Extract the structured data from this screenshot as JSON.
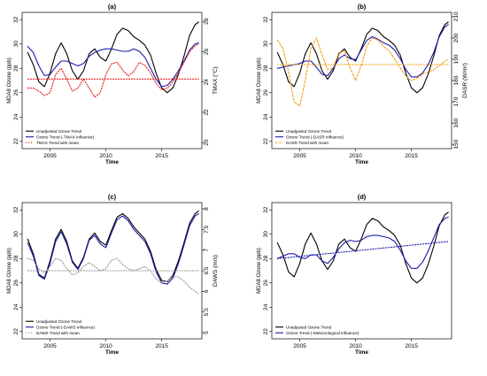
{
  "chart_data": [
    {
      "panel": "(a)",
      "type": "line",
      "x_label": "Time",
      "y_label": "MDA8 Ozone (ppb)",
      "y_ticks": [
        22,
        24,
        26,
        28,
        30,
        32
      ],
      "y_range": [
        21.4,
        32.6
      ],
      "right_label": "TMAX (°C)",
      "right_ticks": [
        20,
        22,
        24,
        26,
        28
      ],
      "right_range": [
        19.6,
        28.6
      ],
      "x_ticks": [
        2005,
        2010,
        2015
      ],
      "x_range": [
        2002.5,
        2018.6
      ],
      "legend_position": "bottom-left",
      "legend": [
        "Unadjusted Ozone Trend",
        "Ozone Trend (-TMAX Influence)",
        "TMAX Trend with mean"
      ],
      "series": [
        {
          "name": "Unadjusted Ozone Trend",
          "axis": "left",
          "color": "#000000",
          "style": "solid",
          "x": [
            2003.0,
            2003.5,
            2004.0,
            2004.5,
            2005.0,
            2005.5,
            2006.0,
            2006.5,
            2007.0,
            2007.5,
            2008.0,
            2008.5,
            2009.0,
            2009.5,
            2010.0,
            2010.5,
            2011.0,
            2011.5,
            2012.0,
            2012.5,
            2013.0,
            2013.5,
            2014.0,
            2014.5,
            2015.0,
            2015.5,
            2016.0,
            2016.5,
            2017.0,
            2017.5,
            2018.0,
            2018.3
          ],
          "y": [
            29.3,
            28.3,
            26.9,
            26.5,
            27.6,
            29.2,
            30.1,
            29.2,
            27.8,
            27.1,
            27.8,
            29.2,
            29.6,
            28.9,
            28.6,
            29.6,
            30.8,
            31.3,
            31.1,
            30.6,
            30.3,
            29.9,
            29.1,
            27.6,
            26.4,
            26.0,
            26.4,
            27.5,
            29.0,
            30.7,
            31.6,
            31.8
          ]
        },
        {
          "name": "Ozone Trend (-TMAX Influence)",
          "axis": "left",
          "color": "#1a1aaa",
          "style": "solid",
          "x": [
            2003.0,
            2003.5,
            2004.0,
            2004.5,
            2005.0,
            2005.5,
            2006.0,
            2006.5,
            2007.0,
            2007.5,
            2008.0,
            2008.5,
            2009.0,
            2009.5,
            2010.0,
            2010.5,
            2011.0,
            2011.5,
            2012.0,
            2012.5,
            2013.0,
            2013.5,
            2014.0,
            2014.5,
            2015.0,
            2015.5,
            2016.0,
            2016.5,
            2017.0,
            2017.5,
            2018.0,
            2018.3
          ],
          "y": [
            29.8,
            29.3,
            28.2,
            27.4,
            27.5,
            28.1,
            28.6,
            28.6,
            28.4,
            28.2,
            28.4,
            29.0,
            29.3,
            29.5,
            29.6,
            29.6,
            29.5,
            29.4,
            29.4,
            29.6,
            29.4,
            28.9,
            28.0,
            27.1,
            26.5,
            26.6,
            27.1,
            27.8,
            28.6,
            29.5,
            30.0,
            30.1
          ]
        },
        {
          "name": "TMAX Trend with mean",
          "axis": "right",
          "color": "#e8191a",
          "style": "dotted",
          "x": [
            2003.0,
            2003.5,
            2004.0,
            2004.5,
            2005.0,
            2005.5,
            2006.0,
            2006.5,
            2007.0,
            2007.5,
            2008.0,
            2008.5,
            2009.0,
            2009.5,
            2010.0,
            2010.5,
            2011.0,
            2011.5,
            2012.0,
            2012.5,
            2013.0,
            2013.5,
            2014.0,
            2014.5,
            2015.0,
            2015.5,
            2016.0,
            2016.5,
            2017.0,
            2017.5,
            2018.0,
            2018.3
          ],
          "y": [
            23.6,
            23.6,
            23.4,
            23.1,
            23.3,
            24.5,
            24.9,
            24.2,
            23.4,
            23.6,
            24.2,
            23.6,
            23.0,
            23.3,
            24.5,
            25.2,
            25.3,
            24.8,
            24.4,
            24.7,
            25.3,
            25.1,
            24.6,
            23.9,
            23.5,
            23.6,
            24.0,
            24.6,
            25.3,
            26.0,
            26.4,
            26.5
          ]
        },
        {
          "name": "TMAX mean",
          "axis": "right",
          "color": "#e8191a",
          "style": "dotted",
          "x": [
            2003.0,
            2018.3
          ],
          "y": [
            24.2,
            24.2
          ]
        }
      ]
    },
    {
      "panel": "(b)",
      "type": "line",
      "x_label": "Time",
      "y_label": "MDA8 Ozone (ppb)",
      "y_ticks": [
        22,
        24,
        26,
        28,
        30,
        32
      ],
      "y_range": [
        21.4,
        32.6
      ],
      "right_label": "DASR (W/m²)",
      "right_ticks": [
        150,
        160,
        170,
        180,
        190,
        200,
        210
      ],
      "right_range": [
        148,
        212
      ],
      "x_ticks": [
        2005,
        2010,
        2015
      ],
      "x_range": [
        2002.5,
        2018.6
      ],
      "legend_position": "bottom-left",
      "legend": [
        "Unadjusted Ozone Trend",
        "Ozone Trend (-DASR Influence)",
        "DASR Trend with mean"
      ],
      "series": [
        {
          "name": "Unadjusted Ozone Trend",
          "axis": "left",
          "color": "#000000",
          "style": "solid",
          "x": [
            2003.0,
            2003.5,
            2004.0,
            2004.5,
            2005.0,
            2005.5,
            2006.0,
            2006.5,
            2007.0,
            2007.5,
            2008.0,
            2008.5,
            2009.0,
            2009.5,
            2010.0,
            2010.5,
            2011.0,
            2011.5,
            2012.0,
            2012.5,
            2013.0,
            2013.5,
            2014.0,
            2014.5,
            2015.0,
            2015.5,
            2016.0,
            2016.5,
            2017.0,
            2017.5,
            2018.0,
            2018.3
          ],
          "y": [
            29.3,
            28.3,
            26.9,
            26.5,
            27.6,
            29.2,
            30.1,
            29.2,
            27.8,
            27.1,
            27.8,
            29.2,
            29.6,
            28.9,
            28.6,
            29.6,
            30.8,
            31.3,
            31.1,
            30.6,
            30.3,
            29.9,
            29.1,
            27.6,
            26.4,
            26.0,
            26.4,
            27.5,
            29.0,
            30.7,
            31.6,
            31.8
          ]
        },
        {
          "name": "Ozone Trend (-DASR Influence)",
          "axis": "left",
          "color": "#1a1aaa",
          "style": "solid",
          "x": [
            2003.0,
            2003.5,
            2004.0,
            2004.5,
            2005.0,
            2005.5,
            2006.0,
            2006.5,
            2007.0,
            2007.5,
            2008.0,
            2008.5,
            2009.0,
            2009.5,
            2010.0,
            2010.5,
            2011.0,
            2011.5,
            2012.0,
            2012.5,
            2013.0,
            2013.5,
            2014.0,
            2014.5,
            2015.0,
            2015.5,
            2016.0,
            2016.5,
            2017.0,
            2017.5,
            2018.0,
            2018.3
          ],
          "y": [
            28.0,
            28.1,
            28.2,
            28.3,
            28.4,
            28.6,
            28.6,
            28.1,
            27.5,
            27.4,
            28.0,
            28.8,
            29.1,
            28.8,
            28.7,
            29.5,
            30.3,
            30.6,
            30.4,
            30.1,
            29.9,
            29.5,
            28.8,
            27.9,
            27.3,
            27.3,
            27.6,
            28.3,
            29.3,
            30.6,
            31.4,
            31.6
          ]
        },
        {
          "name": "DASR Trend with mean",
          "axis": "right",
          "color": "#f5a01a",
          "style": "dashed",
          "x": [
            2003.0,
            2003.5,
            2004.0,
            2004.5,
            2005.0,
            2005.5,
            2006.0,
            2006.5,
            2007.0,
            2007.5,
            2008.0,
            2008.5,
            2009.0,
            2009.5,
            2010.0,
            2010.5,
            2011.0,
            2011.5,
            2012.0,
            2012.5,
            2013.0,
            2013.5,
            2014.0,
            2014.5,
            2015.0,
            2015.5,
            2016.0,
            2016.5,
            2017.0,
            2017.5,
            2018.0,
            2018.3
          ],
          "y": [
            199,
            195,
            184,
            170,
            168,
            180,
            195,
            200,
            192,
            185,
            186,
            193,
            194,
            186,
            180,
            187,
            196,
            200,
            199,
            196,
            194,
            190,
            186,
            182,
            180,
            181,
            183,
            184,
            185,
            187,
            189,
            190
          ]
        },
        {
          "name": "DASR mean",
          "axis": "right",
          "color": "#f5a01a",
          "style": "dotted",
          "x": [
            2003.0,
            2018.3
          ],
          "y": [
            187.5,
            187.5
          ]
        }
      ]
    },
    {
      "panel": "(c)",
      "type": "line",
      "x_label": "Time",
      "y_label": "MDA8 Ozone (ppb)",
      "y_ticks": [
        22,
        24,
        26,
        28,
        30,
        32
      ],
      "y_range": [
        21.4,
        32.6
      ],
      "right_label": "DAWS (m/s)",
      "right_ticks": [
        5.0,
        5.5,
        6.0,
        6.5,
        7.0,
        7.5,
        8.0
      ],
      "right_range": [
        4.85,
        8.15
      ],
      "x_ticks": [
        2005,
        2010,
        2015
      ],
      "x_range": [
        2002.5,
        2018.6
      ],
      "legend_position": "bottom-left",
      "legend": [
        "Unadjusted Ozone Trend",
        "Ozone Trend (-DAWS Influence)",
        "DAWS Trend with mean"
      ],
      "series": [
        {
          "name": "Unadjusted Ozone Trend",
          "axis": "left",
          "color": "#000000",
          "style": "solid",
          "x": [
            2003.0,
            2003.5,
            2004.0,
            2004.5,
            2005.0,
            2005.5,
            2006.0,
            2006.5,
            2007.0,
            2007.5,
            2008.0,
            2008.5,
            2009.0,
            2009.5,
            2010.0,
            2010.5,
            2011.0,
            2011.5,
            2012.0,
            2012.5,
            2013.0,
            2013.5,
            2014.0,
            2014.5,
            2015.0,
            2015.5,
            2016.0,
            2016.5,
            2017.0,
            2017.5,
            2018.0,
            2018.3
          ],
          "y": [
            29.6,
            28.4,
            26.7,
            26.4,
            27.8,
            29.6,
            30.4,
            29.4,
            27.8,
            27.2,
            28.1,
            29.6,
            30.1,
            29.4,
            29.1,
            30.3,
            31.4,
            31.7,
            31.3,
            30.6,
            30.1,
            29.6,
            28.6,
            27.1,
            26.2,
            26.1,
            26.6,
            27.8,
            29.3,
            30.9,
            31.7,
            31.9
          ]
        },
        {
          "name": "Ozone Trend (-DAWS Influence)",
          "axis": "left",
          "color": "#1a1aaa",
          "style": "solid",
          "x": [
            2003.0,
            2003.5,
            2004.0,
            2004.5,
            2005.0,
            2005.5,
            2006.0,
            2006.5,
            2007.0,
            2007.5,
            2008.0,
            2008.5,
            2009.0,
            2009.5,
            2010.0,
            2010.5,
            2011.0,
            2011.5,
            2012.0,
            2012.5,
            2013.0,
            2013.5,
            2014.0,
            2014.5,
            2015.0,
            2015.5,
            2016.0,
            2016.5,
            2017.0,
            2017.5,
            2018.0,
            2018.3
          ],
          "y": [
            29.3,
            28.2,
            26.6,
            26.3,
            27.6,
            29.4,
            30.2,
            29.2,
            27.7,
            27.1,
            28.0,
            29.5,
            29.9,
            29.2,
            28.9,
            30.1,
            31.2,
            31.5,
            31.1,
            30.4,
            29.9,
            29.4,
            28.4,
            26.9,
            26.0,
            25.9,
            26.4,
            27.6,
            29.1,
            30.7,
            31.5,
            31.7
          ]
        },
        {
          "name": "DAWS Trend with mean",
          "axis": "right",
          "color": "#999999",
          "style": "dotted",
          "x": [
            2003.0,
            2003.5,
            2004.0,
            2004.5,
            2005.0,
            2005.5,
            2006.0,
            2006.5,
            2007.0,
            2007.5,
            2008.0,
            2008.5,
            2009.0,
            2009.5,
            2010.0,
            2010.5,
            2011.0,
            2011.5,
            2012.0,
            2012.5,
            2013.0,
            2013.5,
            2014.0,
            2014.5,
            2015.0,
            2015.5,
            2016.0,
            2016.5,
            2017.0,
            2017.5,
            2018.0,
            2018.3
          ],
          "y": [
            6.8,
            6.75,
            6.55,
            6.45,
            6.6,
            6.8,
            6.75,
            6.55,
            6.4,
            6.45,
            6.6,
            6.7,
            6.6,
            6.5,
            6.55,
            6.75,
            6.8,
            6.65,
            6.55,
            6.5,
            6.55,
            6.6,
            6.5,
            6.3,
            6.2,
            6.25,
            6.35,
            6.35,
            6.25,
            6.1,
            6.0,
            5.95
          ]
        },
        {
          "name": "DAWS mean",
          "axis": "right",
          "color": "#999999",
          "style": "dotted",
          "x": [
            2003.0,
            2018.3
          ],
          "y": [
            6.5,
            6.5
          ]
        }
      ]
    },
    {
      "panel": "(d)",
      "type": "line",
      "x_label": "Time",
      "y_label": "MDA8 Ozone (ppb)",
      "y_ticks": [
        22,
        24,
        26,
        28,
        30,
        32
      ],
      "y_range": [
        21.4,
        32.6
      ],
      "x_ticks": [
        2005,
        2010,
        2015
      ],
      "x_range": [
        2002.5,
        2018.6
      ],
      "legend_position": "bottom-left",
      "legend": [
        "Unadjusted Ozone Trend",
        "Ozone Trend (-Meteorological Influence)"
      ],
      "series": [
        {
          "name": "Unadjusted Ozone Trend",
          "axis": "left",
          "color": "#000000",
          "style": "solid",
          "x": [
            2003.0,
            2003.5,
            2004.0,
            2004.5,
            2005.0,
            2005.5,
            2006.0,
            2006.5,
            2007.0,
            2007.5,
            2008.0,
            2008.5,
            2009.0,
            2009.5,
            2010.0,
            2010.5,
            2011.0,
            2011.5,
            2012.0,
            2012.5,
            2013.0,
            2013.5,
            2014.0,
            2014.5,
            2015.0,
            2015.5,
            2016.0,
            2016.5,
            2017.0,
            2017.5,
            2018.0,
            2018.3
          ],
          "y": [
            29.3,
            28.3,
            26.9,
            26.5,
            27.6,
            29.2,
            30.1,
            29.2,
            27.8,
            27.1,
            27.8,
            29.2,
            29.6,
            28.9,
            28.6,
            29.6,
            30.8,
            31.3,
            31.1,
            30.6,
            30.3,
            29.9,
            29.1,
            27.6,
            26.4,
            26.0,
            26.4,
            27.5,
            29.0,
            30.7,
            31.6,
            31.8
          ]
        },
        {
          "name": "Ozone Trend (-Meteorological Influence)",
          "axis": "left",
          "color": "#1a1aaa",
          "style": "solid",
          "x": [
            2003.0,
            2003.5,
            2004.0,
            2004.5,
            2005.0,
            2005.5,
            2006.0,
            2006.5,
            2007.0,
            2007.5,
            2008.0,
            2008.5,
            2009.0,
            2009.5,
            2010.0,
            2010.5,
            2011.0,
            2011.5,
            2012.0,
            2012.5,
            2013.0,
            2013.5,
            2014.0,
            2014.5,
            2015.0,
            2015.5,
            2016.0,
            2016.5,
            2017.0,
            2017.5,
            2018.0,
            2018.3
          ],
          "y": [
            28.0,
            28.2,
            28.4,
            28.4,
            28.1,
            28.0,
            28.3,
            28.3,
            27.8,
            27.6,
            28.1,
            28.8,
            29.3,
            29.5,
            29.4,
            29.5,
            29.8,
            29.9,
            29.9,
            29.8,
            29.7,
            29.4,
            28.7,
            27.8,
            27.2,
            27.2,
            27.7,
            28.6,
            29.7,
            30.8,
            31.3,
            31.4
          ]
        },
        {
          "name": "Linear trend",
          "axis": "left",
          "color": "#1a1aaa",
          "style": "dotted",
          "x": [
            2003.0,
            2018.3
          ],
          "y": [
            28.0,
            29.4
          ]
        }
      ]
    }
  ]
}
